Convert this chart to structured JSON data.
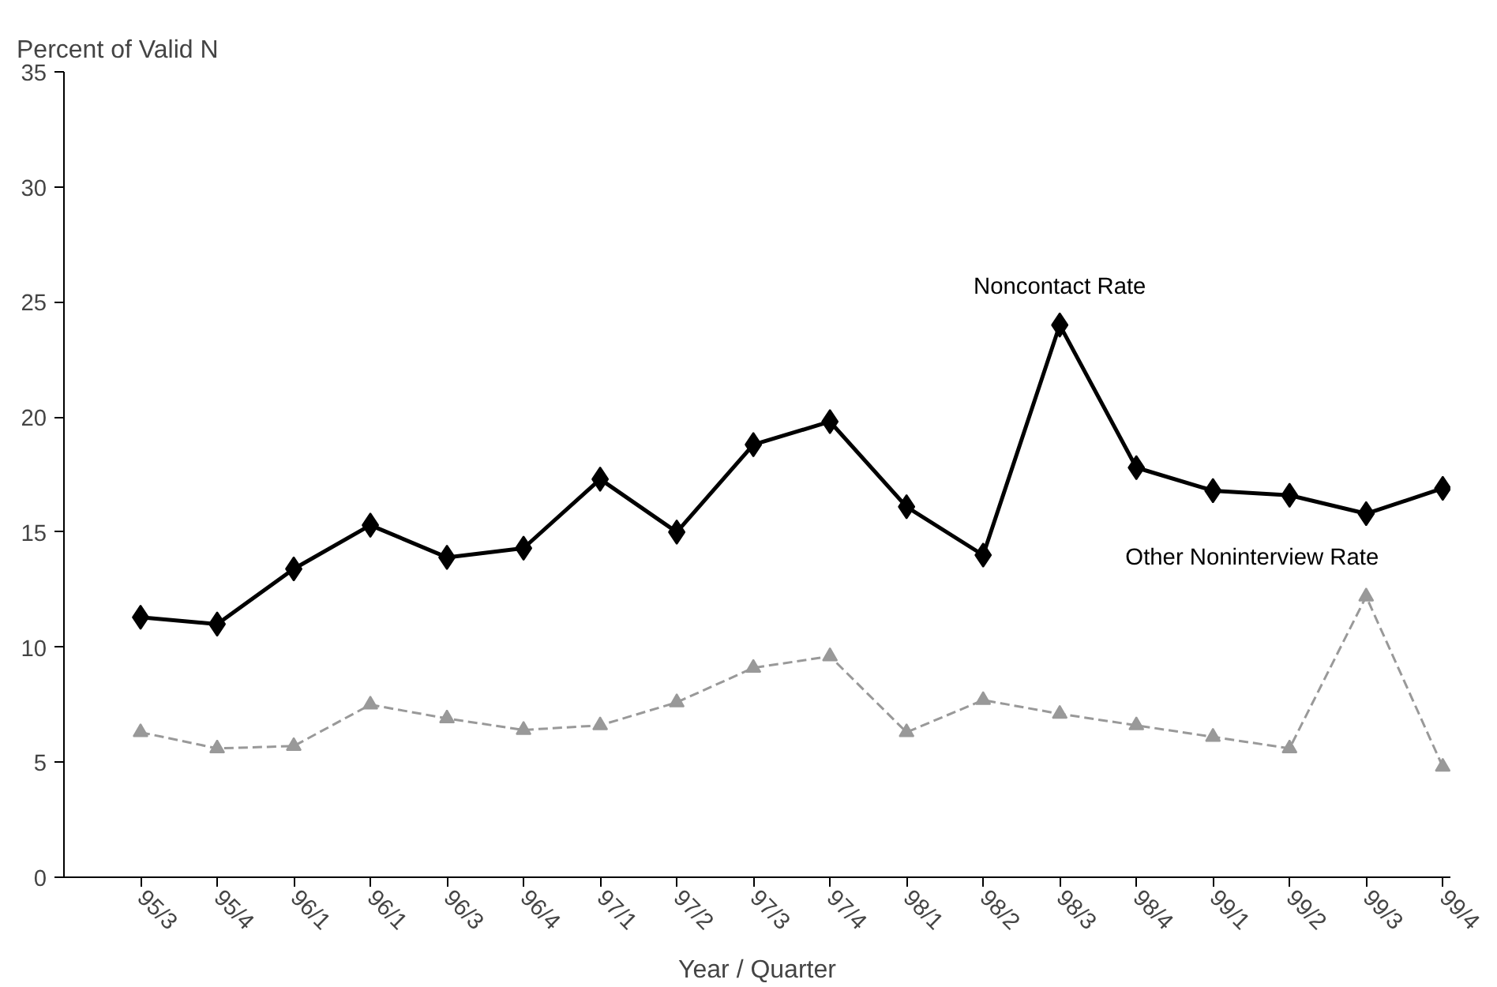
{
  "chart_data": {
    "type": "line",
    "ylabel": "Percent of Valid N",
    "xlabel": "Year / Quarter",
    "categories": [
      "95/3",
      "95/4",
      "96/1",
      "96/1",
      "96/3",
      "96/4",
      "97/1",
      "97/2",
      "97/3",
      "97/4",
      "98/1",
      "98/2",
      "98/3",
      "98/4",
      "99/1",
      "99/2",
      "99/3",
      "99/4"
    ],
    "series": [
      {
        "name": "Noncontact Rate",
        "color": "#000000",
        "marker": "diamond",
        "line_style": "solid",
        "values": [
          11.3,
          11.0,
          13.4,
          15.3,
          13.9,
          14.3,
          17.3,
          15.0,
          18.8,
          19.8,
          16.1,
          14.0,
          24.0,
          17.8,
          16.8,
          16.6,
          15.8,
          16.9
        ]
      },
      {
        "name": "Other Noninterview Rate",
        "color": "#999999",
        "marker": "triangle",
        "line_style": "dashed",
        "values": [
          6.3,
          5.6,
          5.7,
          7.5,
          6.9,
          6.4,
          6.6,
          7.6,
          9.1,
          9.6,
          6.3,
          7.7,
          7.1,
          6.6,
          6.1,
          5.6,
          12.2,
          4.8
        ]
      }
    ],
    "ylim": [
      0,
      35
    ],
    "yticks": [
      0,
      5,
      10,
      15,
      20,
      25,
      30,
      35
    ],
    "grid": false
  }
}
